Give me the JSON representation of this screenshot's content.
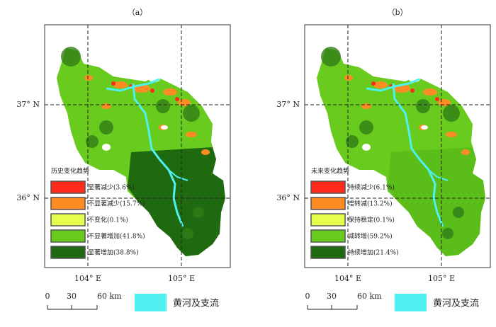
{
  "panels": [
    {
      "label": "（a）",
      "lat_labels": [
        "37° N",
        "36° N"
      ],
      "lon_labels": [
        "104° E",
        "105° E"
      ],
      "legend": {
        "title": "历史变化趋势",
        "items": [
          {
            "label": "显著减少(3.6%)",
            "color": "#ff2b1c"
          },
          {
            "label": "不显著减少(15.7%)",
            "color": "#ff8c22"
          },
          {
            "label": "不变化(0.1%)",
            "color": "#e6ff4d"
          },
          {
            "label": "不显著增加(41.8%)",
            "color": "#6acb1f"
          },
          {
            "label": "显著增加(38.8%)",
            "color": "#1f6a10"
          }
        ]
      }
    },
    {
      "label": "（b）",
      "lat_labels": [
        "37° N",
        "36° N"
      ],
      "lon_labels": [
        "104° E",
        "105° E"
      ],
      "legend": {
        "title": "未来变化趋势",
        "items": [
          {
            "label": "持续减少(6.1%)",
            "color": "#ff2b1c"
          },
          {
            "label": "增转减(13.2%)",
            "color": "#ff8c22"
          },
          {
            "label": "保持稳定(0.1%)",
            "color": "#e6ff4d"
          },
          {
            "label": "减转增(59.2%)",
            "color": "#6acb1f"
          },
          {
            "label": "持续增加(21.4%)",
            "color": "#1f6a10"
          }
        ]
      }
    }
  ],
  "scale_bar": [
    "0",
    "30",
    "60 km"
  ],
  "river_legend": "黄河及支流"
}
